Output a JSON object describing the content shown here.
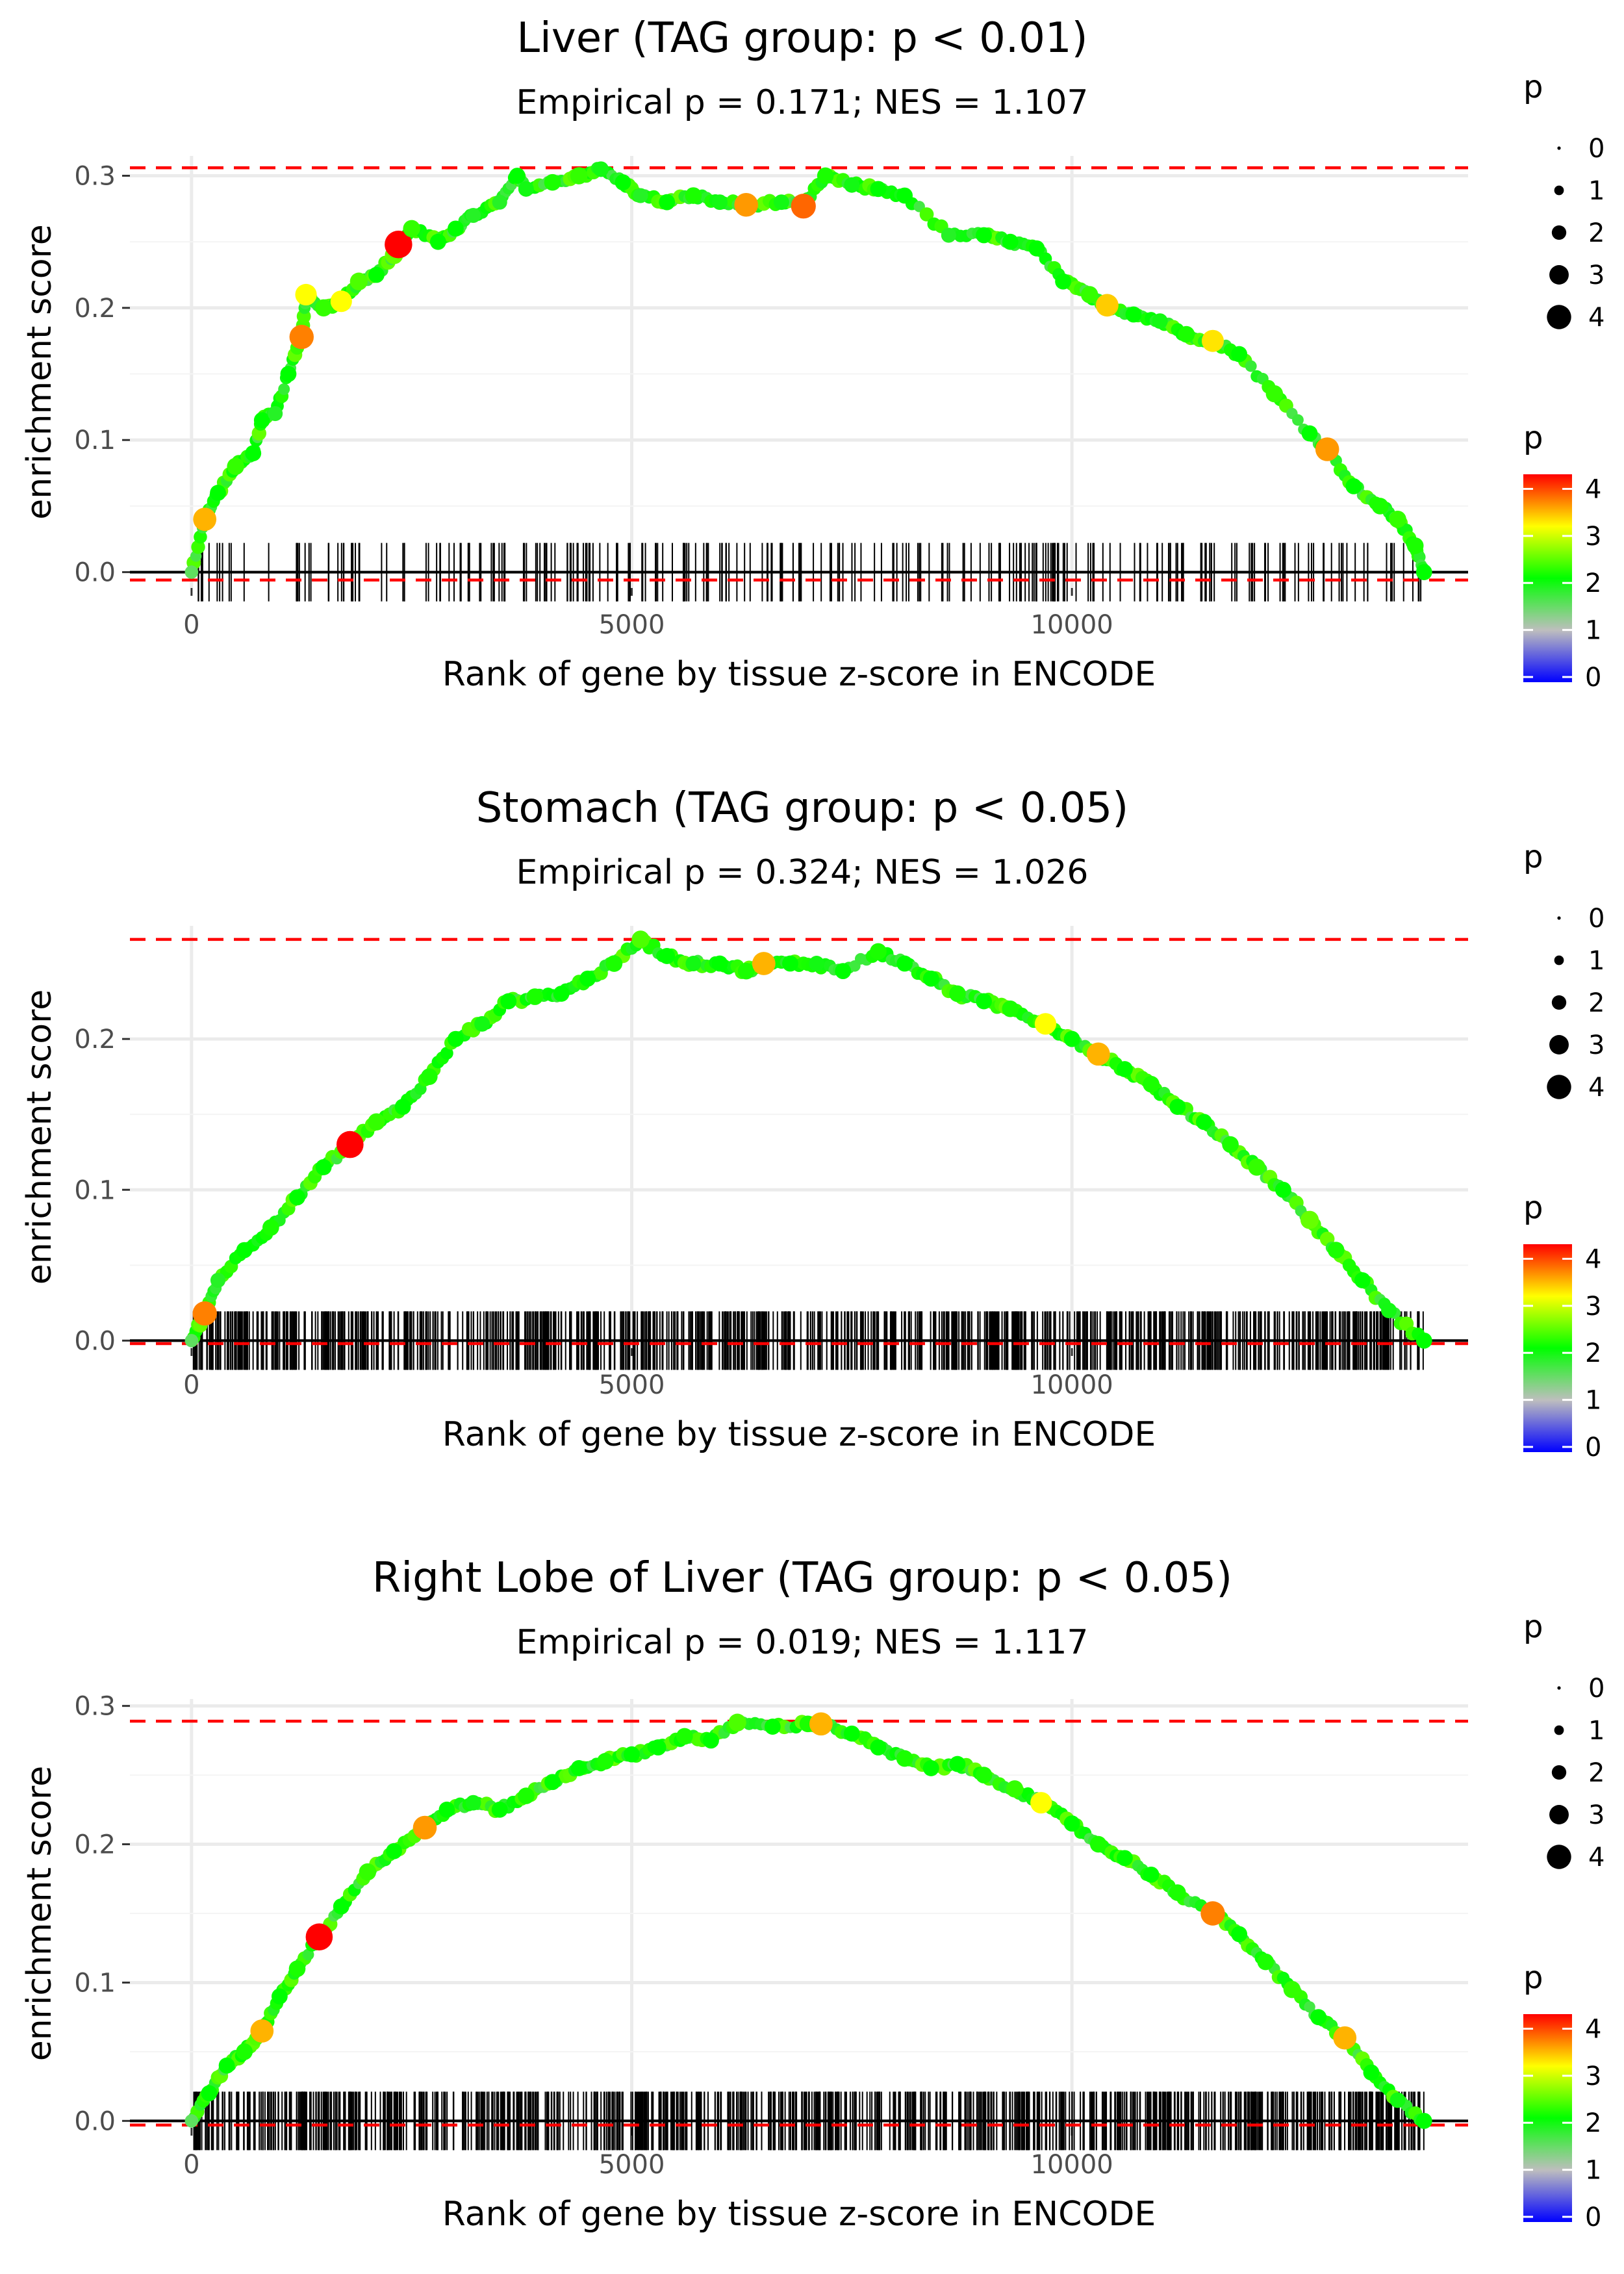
{
  "chart_data": [
    {
      "type": "line",
      "title": "Liver (TAG group: p < 0.01)",
      "subtitle": "Empirical p = 0.171; NES = 1.107",
      "xlabel": "Rank of gene by tissue z-score in ENCODE",
      "ylabel": "enrichment score",
      "xlim": [
        -700,
        14500
      ],
      "ylim": [
        -0.012,
        0.315
      ],
      "x_ticks": [
        0,
        5000,
        10000
      ],
      "x_tick_labels": [
        "0",
        "5000",
        "10000"
      ],
      "y_ticks": [
        0.0,
        0.1,
        0.2,
        0.3
      ],
      "y_tick_labels": [
        "0.0",
        "0.1",
        "0.2",
        "0.3"
      ],
      "max_es": 0.306,
      "min_es": -0.006,
      "n_hits": 270,
      "points": [
        [
          0,
          0.0,
          1.5
        ],
        [
          150,
          0.04,
          3.3
        ],
        [
          300,
          0.06,
          2.0
        ],
        [
          500,
          0.08,
          2.2
        ],
        [
          700,
          0.09,
          2.0
        ],
        [
          800,
          0.115,
          2.0
        ],
        [
          950,
          0.12,
          1.8
        ],
        [
          1100,
          0.15,
          2.0
        ],
        [
          1250,
          0.178,
          3.5
        ],
        [
          1300,
          0.21,
          3.0
        ],
        [
          1500,
          0.2,
          2.2
        ],
        [
          1700,
          0.205,
          3.0
        ],
        [
          1900,
          0.22,
          2.3
        ],
        [
          2100,
          0.225,
          2.0
        ],
        [
          2300,
          0.24,
          2.4
        ],
        [
          2350,
          0.248,
          4.1
        ],
        [
          2500,
          0.26,
          2.2
        ],
        [
          2800,
          0.25,
          2.0
        ],
        [
          3000,
          0.26,
          2.0
        ],
        [
          3200,
          0.27,
          1.8
        ],
        [
          3500,
          0.28,
          1.8
        ],
        [
          3700,
          0.3,
          2.0
        ],
        [
          3800,
          0.29,
          1.9
        ],
        [
          4100,
          0.295,
          2.1
        ],
        [
          4400,
          0.3,
          2.2
        ],
        [
          4650,
          0.305,
          1.9
        ],
        [
          4900,
          0.295,
          2.0
        ],
        [
          5100,
          0.285,
          1.8
        ],
        [
          5400,
          0.28,
          2.0
        ],
        [
          5700,
          0.285,
          2.1
        ],
        [
          6000,
          0.28,
          1.9
        ],
        [
          6300,
          0.278,
          3.4
        ],
        [
          6700,
          0.28,
          1.9
        ],
        [
          6950,
          0.277,
          3.6
        ],
        [
          7200,
          0.3,
          2.1
        ],
        [
          7500,
          0.293,
          1.9
        ],
        [
          7800,
          0.29,
          2.0
        ],
        [
          8100,
          0.285,
          2.0
        ],
        [
          8600,
          0.255,
          1.8
        ],
        [
          9000,
          0.255,
          2.0
        ],
        [
          9300,
          0.25,
          2.0
        ],
        [
          9600,
          0.245,
          2.0
        ],
        [
          9900,
          0.22,
          2.0
        ],
        [
          10200,
          0.21,
          2.2
        ],
        [
          10400,
          0.202,
          3.2
        ],
        [
          10700,
          0.195,
          2.0
        ],
        [
          11000,
          0.19,
          1.9
        ],
        [
          11300,
          0.18,
          2.1
        ],
        [
          11600,
          0.175,
          3.1
        ],
        [
          11900,
          0.165,
          2.0
        ],
        [
          12300,
          0.135,
          2.2
        ],
        [
          12700,
          0.105,
          2.0
        ],
        [
          12900,
          0.093,
          3.4
        ],
        [
          13200,
          0.065,
          2.0
        ],
        [
          13500,
          0.05,
          2.1
        ],
        [
          13700,
          0.04,
          2.2
        ],
        [
          13900,
          0.02,
          2.1
        ],
        [
          14000,
          0.0,
          2.0
        ]
      ]
    },
    {
      "type": "line",
      "title": "Stomach (TAG group: p < 0.05)",
      "subtitle": "Empirical p = 0.324; NES = 1.026",
      "xlabel": "Rank of gene by tissue z-score in ENCODE",
      "ylabel": "enrichment score",
      "xlim": [
        -700,
        14500
      ],
      "ylim": [
        -0.005,
        0.275
      ],
      "x_ticks": [
        0,
        5000,
        10000
      ],
      "x_tick_labels": [
        "0",
        "5000",
        "10000"
      ],
      "y_ticks": [
        0.0,
        0.1,
        0.2
      ],
      "y_tick_labels": [
        "0.0",
        "0.1",
        "0.2"
      ],
      "max_es": 0.266,
      "min_es": -0.002,
      "n_hits": 900,
      "points": [
        [
          0,
          0.0,
          1.5
        ],
        [
          150,
          0.018,
          3.5
        ],
        [
          300,
          0.04,
          1.8
        ],
        [
          600,
          0.06,
          2.0
        ],
        [
          900,
          0.075,
          2.1
        ],
        [
          1200,
          0.095,
          2.0
        ],
        [
          1500,
          0.115,
          2.0
        ],
        [
          1800,
          0.13,
          4.0
        ],
        [
          2100,
          0.145,
          2.2
        ],
        [
          2400,
          0.155,
          2.0
        ],
        [
          2700,
          0.175,
          2.1
        ],
        [
          3000,
          0.2,
          2.0
        ],
        [
          3300,
          0.21,
          1.9
        ],
        [
          3600,
          0.225,
          2.0
        ],
        [
          3900,
          0.228,
          2.1
        ],
        [
          4200,
          0.23,
          2.0
        ],
        [
          4500,
          0.24,
          2.0
        ],
        [
          4800,
          0.25,
          2.1
        ],
        [
          5100,
          0.266,
          2.3
        ],
        [
          5400,
          0.255,
          2.0
        ],
        [
          5700,
          0.25,
          1.9
        ],
        [
          6000,
          0.25,
          2.0
        ],
        [
          6300,
          0.245,
          2.1
        ],
        [
          6500,
          0.25,
          3.3
        ],
        [
          6800,
          0.25,
          2.0
        ],
        [
          7100,
          0.25,
          1.9
        ],
        [
          7400,
          0.245,
          2.0
        ],
        [
          7800,
          0.258,
          2.1
        ],
        [
          8100,
          0.25,
          2.0
        ],
        [
          8400,
          0.24,
          2.0
        ],
        [
          8700,
          0.23,
          2.1
        ],
        [
          9000,
          0.225,
          2.0
        ],
        [
          9300,
          0.22,
          2.1
        ],
        [
          9700,
          0.21,
          3.0
        ],
        [
          10000,
          0.2,
          2.0
        ],
        [
          10300,
          0.19,
          3.3
        ],
        [
          10600,
          0.18,
          2.0
        ],
        [
          10900,
          0.17,
          2.1
        ],
        [
          11200,
          0.155,
          2.0
        ],
        [
          11500,
          0.145,
          2.0
        ],
        [
          11800,
          0.13,
          2.1
        ],
        [
          12100,
          0.115,
          2.2
        ],
        [
          12400,
          0.1,
          2.0
        ],
        [
          12700,
          0.08,
          2.4
        ],
        [
          13000,
          0.06,
          2.1
        ],
        [
          13300,
          0.04,
          2.0
        ],
        [
          13600,
          0.02,
          1.9
        ],
        [
          14000,
          0.0,
          2.0
        ]
      ]
    },
    {
      "type": "line",
      "title": "Right Lobe of Liver (TAG group: p < 0.05)",
      "subtitle": "Empirical p = 0.019; NES = 1.117",
      "xlabel": "Rank of gene by tissue z-score in ENCODE",
      "ylabel": "enrichment score",
      "xlim": [
        -700,
        14500
      ],
      "ylim": [
        -0.005,
        0.305
      ],
      "x_ticks": [
        0,
        5000,
        10000
      ],
      "x_tick_labels": [
        "0",
        "5000",
        "10000"
      ],
      "y_ticks": [
        0.0,
        0.1,
        0.2,
        0.3
      ],
      "y_tick_labels": [
        "0.0",
        "0.1",
        "0.2",
        "0.3"
      ],
      "max_es": 0.289,
      "min_es": -0.003,
      "n_hits": 900,
      "points": [
        [
          0,
          0.0,
          1.5
        ],
        [
          200,
          0.02,
          2.0
        ],
        [
          400,
          0.04,
          2.0
        ],
        [
          600,
          0.05,
          2.1
        ],
        [
          800,
          0.065,
          3.3
        ],
        [
          1000,
          0.09,
          2.0
        ],
        [
          1200,
          0.11,
          2.1
        ],
        [
          1450,
          0.133,
          4.0
        ],
        [
          1700,
          0.155,
          2.0
        ],
        [
          2000,
          0.18,
          2.2
        ],
        [
          2300,
          0.195,
          2.0
        ],
        [
          2650,
          0.212,
          3.4
        ],
        [
          2900,
          0.225,
          2.0
        ],
        [
          3200,
          0.23,
          1.9
        ],
        [
          3500,
          0.225,
          2.0
        ],
        [
          3800,
          0.235,
          2.1
        ],
        [
          4100,
          0.245,
          2.0
        ],
        [
          4400,
          0.255,
          2.0
        ],
        [
          4700,
          0.26,
          2.1
        ],
        [
          5000,
          0.265,
          2.0
        ],
        [
          5300,
          0.27,
          2.0
        ],
        [
          5600,
          0.278,
          2.1
        ],
        [
          5900,
          0.275,
          2.0
        ],
        [
          6200,
          0.288,
          2.3
        ],
        [
          6600,
          0.285,
          2.0
        ],
        [
          7000,
          0.287,
          2.1
        ],
        [
          7150,
          0.287,
          3.3
        ],
        [
          7500,
          0.28,
          2.0
        ],
        [
          7800,
          0.27,
          2.0
        ],
        [
          8100,
          0.262,
          2.1
        ],
        [
          8400,
          0.255,
          2.0
        ],
        [
          8700,
          0.258,
          2.0
        ],
        [
          9000,
          0.25,
          2.1
        ],
        [
          9350,
          0.24,
          2.2
        ],
        [
          9650,
          0.23,
          3.0
        ],
        [
          10000,
          0.215,
          2.0
        ],
        [
          10300,
          0.2,
          2.1
        ],
        [
          10600,
          0.19,
          2.0
        ],
        [
          10900,
          0.178,
          2.0
        ],
        [
          11200,
          0.165,
          2.1
        ],
        [
          11600,
          0.15,
          3.5
        ],
        [
          11900,
          0.135,
          2.0
        ],
        [
          12200,
          0.115,
          2.1
        ],
        [
          12500,
          0.095,
          2.2
        ],
        [
          12800,
          0.075,
          2.0
        ],
        [
          13100,
          0.06,
          3.3
        ],
        [
          13400,
          0.035,
          2.0
        ],
        [
          13700,
          0.015,
          1.9
        ],
        [
          14000,
          0.0,
          2.0
        ]
      ]
    }
  ],
  "legend": {
    "size_title": "p",
    "size_labels": [
      "0",
      "1",
      "2",
      "3",
      "4"
    ],
    "color_title": "p",
    "color_labels": [
      "4",
      "3",
      "2",
      "1",
      "0"
    ]
  },
  "colors": {
    "dashed_line": "#ff0000",
    "curve": "#bebebe",
    "gradient": [
      "#0000ff",
      "#bebebe",
      "#00ff00",
      "#ffff00",
      "#ff0000"
    ]
  }
}
